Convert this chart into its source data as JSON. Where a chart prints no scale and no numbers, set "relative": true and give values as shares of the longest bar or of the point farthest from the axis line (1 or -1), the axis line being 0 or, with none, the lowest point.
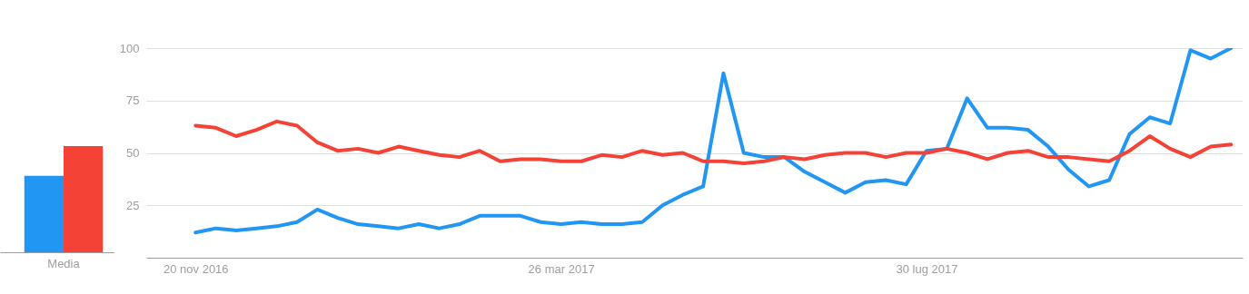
{
  "chart_data": [
    {
      "type": "bar",
      "relative": true,
      "categories": [
        "Media"
      ],
      "series": [
        {
          "color": "#2196f3",
          "values": [
            0.72
          ]
        },
        {
          "color": "#f44336",
          "values": [
            1
          ]
        }
      ]
    },
    {
      "type": "line",
      "grid": "y",
      "line_style": "solid",
      "ylim": [
        0,
        100
      ],
      "yticks": [
        25,
        50,
        75,
        100
      ],
      "xlim": [
        "2016-11-03",
        "2017-11-16"
      ],
      "xticks": [
        {
          "value": "2016-11-20",
          "label": "20 nov 2016"
        },
        {
          "value": "2017-03-26",
          "label": "26 mar 2017"
        },
        {
          "value": "2017-07-30",
          "label": "30 lug 2017"
        }
      ],
      "x": [
        "2016-11-20",
        "2016-11-27",
        "2016-12-04",
        "2016-12-11",
        "2016-12-18",
        "2016-12-25",
        "2017-01-01",
        "2017-01-08",
        "2017-01-15",
        "2017-01-22",
        "2017-01-29",
        "2017-02-05",
        "2017-02-12",
        "2017-02-19",
        "2017-02-26",
        "2017-03-05",
        "2017-03-12",
        "2017-03-19",
        "2017-03-26",
        "2017-04-02",
        "2017-04-09",
        "2017-04-16",
        "2017-04-23",
        "2017-04-30",
        "2017-05-07",
        "2017-05-14",
        "2017-05-21",
        "2017-05-28",
        "2017-06-04",
        "2017-06-11",
        "2017-06-18",
        "2017-06-25",
        "2017-07-02",
        "2017-07-09",
        "2017-07-16",
        "2017-07-23",
        "2017-07-30",
        "2017-08-06",
        "2017-08-13",
        "2017-08-20",
        "2017-08-27",
        "2017-09-03",
        "2017-09-10",
        "2017-09-17",
        "2017-09-24",
        "2017-10-01",
        "2017-10-08",
        "2017-10-15",
        "2017-10-22",
        "2017-10-29",
        "2017-11-05",
        "2017-11-12"
      ],
      "series": [
        {
          "color": "#2196f3",
          "values": [
            12,
            14,
            13,
            14,
            15,
            17,
            23,
            19,
            16,
            15,
            14,
            16,
            14,
            16,
            20,
            20,
            20,
            17,
            16,
            17,
            16,
            16,
            17,
            25,
            30,
            34,
            88,
            50,
            48,
            48,
            41,
            36,
            31,
            36,
            37,
            35,
            51,
            52,
            76,
            62,
            62,
            61,
            53,
            42,
            34,
            37,
            59,
            67,
            64,
            99,
            95,
            100
          ]
        },
        {
          "color": "#f44336",
          "values": [
            63,
            62,
            58,
            61,
            65,
            63,
            55,
            51,
            52,
            50,
            53,
            51,
            49,
            48,
            51,
            46,
            47,
            47,
            46,
            46,
            49,
            48,
            51,
            49,
            50,
            46,
            46,
            45,
            46,
            48,
            47,
            49,
            50,
            50,
            48,
            50,
            50,
            52,
            50,
            47,
            50,
            51,
            48,
            48,
            47,
            46,
            51,
            58,
            52,
            48,
            53,
            54
          ]
        }
      ]
    }
  ]
}
